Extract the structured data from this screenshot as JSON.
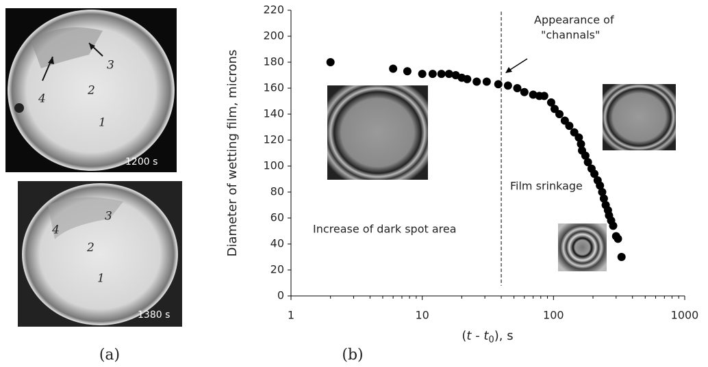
{
  "chart_data": {
    "type": "scatter",
    "xscale": "log",
    "ylabel": "Diameter of wetting film, microns",
    "xlabel_parts": [
      "(",
      "t",
      " - ",
      "t",
      "0",
      "), s"
    ],
    "x": [
      2,
      6,
      7.7,
      10,
      12,
      14,
      16,
      18,
      20,
      22,
      26,
      31,
      38,
      45,
      53,
      60,
      70,
      78,
      85,
      96,
      102,
      111,
      122,
      132,
      144,
      156,
      162,
      165,
      175,
      183,
      195,
      205,
      217,
      226,
      235,
      242,
      250,
      260,
      265,
      275,
      285,
      300,
      310,
      330
    ],
    "series": [
      {
        "color": "#000000",
        "values": [
          180,
          175,
          173,
          171,
          171,
          171,
          171,
          170,
          168,
          167,
          165,
          165,
          163,
          162,
          160,
          157,
          155,
          154,
          154,
          149,
          144,
          140,
          135,
          131,
          126,
          122,
          117,
          112,
          108,
          103,
          98,
          94,
          89,
          85,
          80,
          75,
          70,
          66,
          62,
          58,
          54,
          46,
          44,
          30
        ]
      }
    ],
    "xlim": [
      1,
      1000
    ],
    "xticks": [
      1,
      10,
      100,
      1000
    ],
    "ylim": [
      0,
      220
    ],
    "yticks": [
      0,
      20,
      40,
      60,
      80,
      100,
      120,
      140,
      160,
      180,
      200,
      220
    ],
    "grid": false,
    "vline": 40,
    "annotations": {
      "appearance": [
        "Appearance of",
        "\"channals\""
      ],
      "shrinkage": "Film srinkage",
      "increase": "Increase of dark spot area"
    }
  },
  "panel_a": {
    "caption": "(a)",
    "top": {
      "time": "1200 s",
      "labels": [
        "1",
        "2",
        "3",
        "4"
      ]
    },
    "bottom": {
      "time": "1380 s",
      "labels": [
        "1",
        "2",
        "3",
        "4"
      ]
    }
  },
  "panel_b": {
    "caption": "(b)"
  }
}
